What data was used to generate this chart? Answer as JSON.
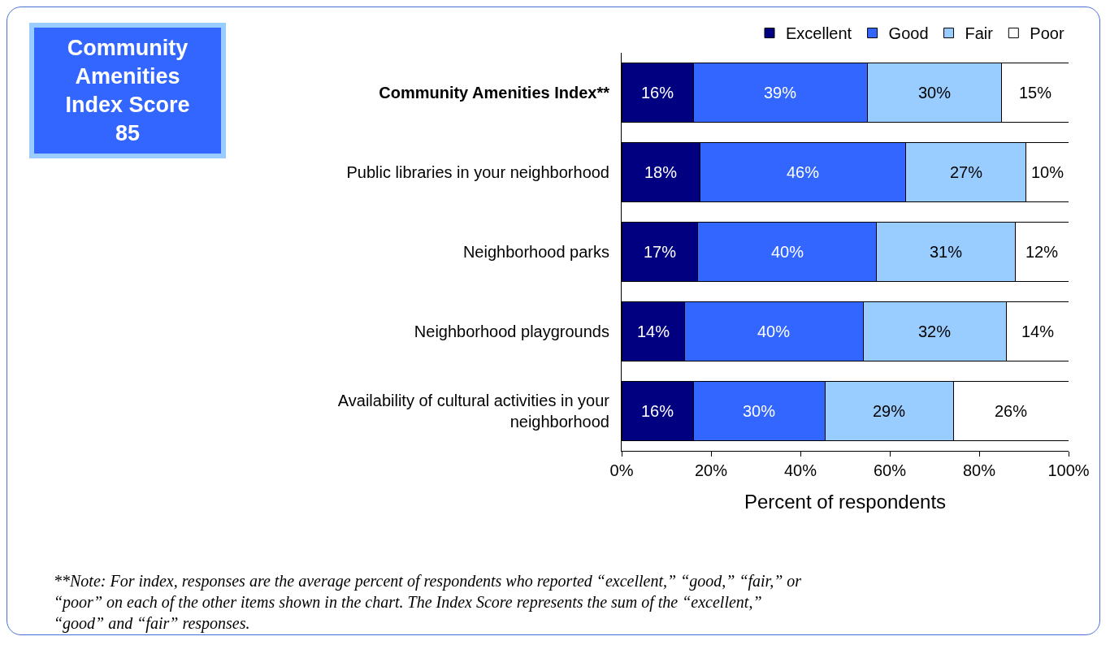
{
  "chart_data": {
    "type": "bar",
    "orientation": "horizontal",
    "stacked": true,
    "categories": [
      "Community Amenities Index**",
      "Public libraries in your neighborhood",
      "Neighborhood parks",
      "Neighborhood playgrounds",
      "Availability of cultural activities in your neighborhood"
    ],
    "series": [
      {
        "name": "Excellent",
        "color": "#000080",
        "values": [
          16,
          17.6,
          17,
          14,
          16
        ],
        "value_labels": [
          "16%",
          "18%",
          "17%",
          "14%",
          "16%"
        ]
      },
      {
        "name": "Good",
        "color": "#3366ff",
        "values": [
          39,
          46,
          40,
          40,
          29.5
        ],
        "value_labels": [
          "39%",
          "46%",
          "40%",
          "40%",
          "30%"
        ]
      },
      {
        "name": "Fair",
        "color": "#99ccff",
        "values": [
          30,
          26.8,
          31,
          32,
          28.8
        ],
        "value_labels": [
          "30%",
          "27%",
          "31%",
          "32%",
          "29%"
        ]
      },
      {
        "name": "Poor",
        "color": "#ffffff",
        "values": [
          15,
          9.6,
          12,
          14,
          25.7
        ],
        "value_labels": [
          "15%",
          "10%",
          "12%",
          "14%",
          "26%"
        ]
      }
    ],
    "xlim": [
      0,
      100
    ],
    "xticks": [
      {
        "value": 0,
        "label": "0%"
      },
      {
        "value": 20,
        "label": "20%"
      },
      {
        "value": 40,
        "label": "40%"
      },
      {
        "value": 60,
        "label": "60%"
      },
      {
        "value": 80,
        "label": "80%"
      },
      {
        "value": 100,
        "label": "100%"
      }
    ],
    "xlabel": "Percent of respondents",
    "legend": "top right",
    "grid": false,
    "annotations": [
      "Community Amenities Index Score 85",
      "**Note: For index, responses are the average percent of respondents who reported “excellent,” “good,” “fair,” or “poor” on each of the other items shown in the chart. The Index Score represents the sum of the “excellent,” “good” and “fair” responses."
    ]
  }
}
